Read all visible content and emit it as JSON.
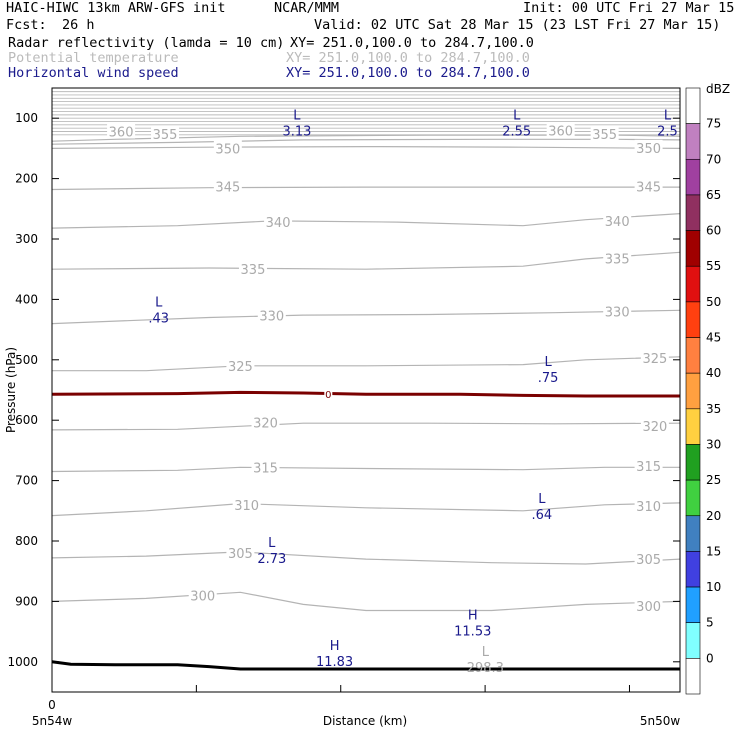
{
  "header": {
    "model": "HAIC-HIWC 13km ARW-GFS init",
    "org": "NCAR/MMM",
    "init": "Init: 00 UTC Fri 27 Mar 15",
    "fcst_label": "Fcst:",
    "fcst_value": "26 h",
    "valid": "Valid: 02 UTC Sat 28 Mar 15 (23 LST Fri 27 Mar 15)",
    "fields": [
      {
        "name": "Radar reflectivity (lamda = 10 cm)",
        "xy": "XY= 251.0,100.0 to 284.7,100.0",
        "color": "#000000"
      },
      {
        "name": "Potential temperature",
        "xy": "XY= 251.0,100.0 to 284.7,100.0",
        "color": "#bbbbbb"
      },
      {
        "name": "Horizontal wind speed",
        "xy": "XY= 251.0,100.0 to 284.7,100.0",
        "color": "#1a1a8c"
      }
    ]
  },
  "chart_data": {
    "type": "contour_cross_section",
    "ylabel": "Pressure (hPa)",
    "xlabel": "Distance (km)",
    "x_start_label": "5n54w",
    "x_end_label": "5n50w",
    "x_zero_label": "0",
    "yticks": [
      100,
      200,
      300,
      400,
      500,
      600,
      700,
      800,
      900,
      1000
    ],
    "ylim": [
      1050,
      50
    ],
    "theta_contours": [
      {
        "value": 360,
        "label": "360",
        "points": [
          [
            0,
            138
          ],
          [
            0.1,
            135
          ],
          [
            0.3,
            130
          ],
          [
            0.6,
            128
          ],
          [
            0.9,
            128
          ],
          [
            1,
            130
          ]
        ]
      },
      {
        "value": 355,
        "label": "355",
        "points": [
          [
            0,
            143
          ],
          [
            0.2,
            140
          ],
          [
            0.4,
            136
          ],
          [
            0.7,
            135
          ],
          [
            0.9,
            135
          ],
          [
            1,
            136
          ]
        ]
      },
      {
        "value": 350,
        "label": "350",
        "points": [
          [
            0,
            150
          ],
          [
            0.25,
            148
          ],
          [
            0.5,
            147
          ],
          [
            0.75,
            148
          ],
          [
            1,
            150
          ]
        ]
      },
      {
        "value": 345,
        "label": "345",
        "points": [
          [
            0,
            218
          ],
          [
            0.25,
            215
          ],
          [
            0.5,
            214
          ],
          [
            0.75,
            214
          ],
          [
            1,
            214
          ]
        ]
      },
      {
        "value": 340,
        "label": "340",
        "points": [
          [
            0,
            282
          ],
          [
            0.2,
            278
          ],
          [
            0.35,
            270
          ],
          [
            0.55,
            272
          ],
          [
            0.75,
            278
          ],
          [
            0.85,
            268
          ],
          [
            1,
            258
          ]
        ]
      },
      {
        "value": 335,
        "label": "335",
        "points": [
          [
            0,
            350
          ],
          [
            0.25,
            348
          ],
          [
            0.5,
            350
          ],
          [
            0.75,
            345
          ],
          [
            0.85,
            333
          ],
          [
            1,
            322
          ]
        ]
      },
      {
        "value": 330,
        "label": "330",
        "points": [
          [
            0,
            440
          ],
          [
            0.25,
            430
          ],
          [
            0.4,
            426
          ],
          [
            0.6,
            425
          ],
          [
            0.8,
            422
          ],
          [
            1,
            418
          ]
        ]
      },
      {
        "value": 325,
        "label": "325",
        "points": [
          [
            0,
            518
          ],
          [
            0.15,
            518
          ],
          [
            0.3,
            510
          ],
          [
            0.5,
            510
          ],
          [
            0.75,
            508
          ],
          [
            0.85,
            500
          ],
          [
            1,
            495
          ]
        ]
      },
      {
        "value": 320,
        "label": "320",
        "points": [
          [
            0,
            616
          ],
          [
            0.2,
            615
          ],
          [
            0.4,
            605
          ],
          [
            0.6,
            605
          ],
          [
            0.8,
            606
          ],
          [
            1,
            605
          ]
        ]
      },
      {
        "value": 315,
        "label": "315",
        "points": [
          [
            0,
            685
          ],
          [
            0.2,
            683
          ],
          [
            0.3,
            678
          ],
          [
            0.5,
            680
          ],
          [
            0.75,
            682
          ],
          [
            0.88,
            678
          ],
          [
            1,
            678
          ]
        ]
      },
      {
        "value": 310,
        "label": "310",
        "points": [
          [
            0,
            758
          ],
          [
            0.15,
            750
          ],
          [
            0.3,
            738
          ],
          [
            0.5,
            745
          ],
          [
            0.75,
            750
          ],
          [
            0.88,
            740
          ],
          [
            1,
            737
          ]
        ]
      },
      {
        "value": 305,
        "label": "305",
        "points": [
          [
            0,
            828
          ],
          [
            0.15,
            825
          ],
          [
            0.3,
            818
          ],
          [
            0.5,
            830
          ],
          [
            0.7,
            836
          ],
          [
            0.85,
            838
          ],
          [
            1,
            830
          ]
        ]
      },
      {
        "value": 300,
        "label": "300",
        "points": [
          [
            0,
            900
          ],
          [
            0.15,
            895
          ],
          [
            0.3,
            885
          ],
          [
            0.4,
            905
          ],
          [
            0.5,
            915
          ],
          [
            0.7,
            915
          ],
          [
            0.85,
            905
          ],
          [
            1,
            900
          ]
        ]
      }
    ],
    "theta_labels": [
      {
        "text": "360",
        "x": 0.11,
        "p": 122
      },
      {
        "text": "355",
        "x": 0.18,
        "p": 126
      },
      {
        "text": "350",
        "x": 0.28,
        "p": 150
      },
      {
        "text": "345",
        "x": 0.28,
        "p": 213
      },
      {
        "text": "340",
        "x": 0.36,
        "p": 272
      },
      {
        "text": "335",
        "x": 0.32,
        "p": 350
      },
      {
        "text": "330",
        "x": 0.35,
        "p": 427
      },
      {
        "text": "325",
        "x": 0.3,
        "p": 510
      },
      {
        "text": "320",
        "x": 0.34,
        "p": 604
      },
      {
        "text": "315",
        "x": 0.34,
        "p": 678
      },
      {
        "text": "310",
        "x": 0.31,
        "p": 740
      },
      {
        "text": "305",
        "x": 0.3,
        "p": 820
      },
      {
        "text": "300",
        "x": 0.24,
        "p": 890
      },
      {
        "text": "360",
        "x": 0.81,
        "p": 120
      },
      {
        "text": "355",
        "x": 0.88,
        "p": 126
      },
      {
        "text": "350",
        "x": 0.95,
        "p": 149
      },
      {
        "text": "345",
        "x": 0.95,
        "p": 213
      },
      {
        "text": "340",
        "x": 0.9,
        "p": 270
      },
      {
        "text": "335",
        "x": 0.9,
        "p": 332
      },
      {
        "text": "330",
        "x": 0.9,
        "p": 420
      },
      {
        "text": "325",
        "x": 0.96,
        "p": 497
      },
      {
        "text": "320",
        "x": 0.96,
        "p": 610
      },
      {
        "text": "315",
        "x": 0.95,
        "p": 676
      },
      {
        "text": "310",
        "x": 0.95,
        "p": 742
      },
      {
        "text": "305",
        "x": 0.95,
        "p": 830
      },
      {
        "text": "300",
        "x": 0.95,
        "p": 908
      }
    ],
    "wind_extrema": [
      {
        "type": "L",
        "value": "3.13",
        "x": 0.39,
        "p": 112
      },
      {
        "type": "L",
        "value": "2.55",
        "x": 0.74,
        "p": 112
      },
      {
        "type": "L",
        "value": "2.5",
        "x": 0.98,
        "p": 112
      },
      {
        "type": "L",
        "value": ".43",
        "x": 0.17,
        "p": 422
      },
      {
        "type": "L",
        "value": ".75",
        "x": 0.79,
        "p": 520
      },
      {
        "type": "L",
        "value": ".64",
        "x": 0.78,
        "p": 747
      },
      {
        "type": "L",
        "value": "2.73",
        "x": 0.35,
        "p": 820
      },
      {
        "type": "H",
        "value": "11.53",
        "x": 0.67,
        "p": 940
      },
      {
        "type": "H",
        "value": "11.83",
        "x": 0.45,
        "p": 990
      }
    ],
    "theta_extremum": {
      "type": "L",
      "value": "298.3",
      "x": 0.69,
      "p": 1000
    },
    "freezing_line": {
      "label": "0",
      "label_x": 0.44,
      "points": [
        [
          0,
          557
        ],
        [
          0.2,
          556
        ],
        [
          0.3,
          554
        ],
        [
          0.4,
          555
        ],
        [
          0.5,
          557
        ],
        [
          0.65,
          557
        ],
        [
          0.75,
          559
        ],
        [
          0.85,
          560
        ],
        [
          1,
          560
        ]
      ]
    },
    "terrain": {
      "points": [
        [
          0,
          1000
        ],
        [
          0.03,
          1004
        ],
        [
          0.1,
          1005
        ],
        [
          0.2,
          1005
        ],
        [
          0.25,
          1008
        ],
        [
          0.3,
          1012
        ],
        [
          0.5,
          1012
        ],
        [
          1,
          1012
        ]
      ]
    },
    "colorbar": {
      "title": "dBZ",
      "levels": [
        "75",
        "70",
        "65",
        "60",
        "55",
        "50",
        "45",
        "40",
        "35",
        "30",
        "25",
        "20",
        "15",
        "10",
        "5",
        "0"
      ],
      "colors": [
        "#ffffff",
        "#c080c0",
        "#a040a0",
        "#903060",
        "#a00000",
        "#e01010",
        "#ff4010",
        "#ff8040",
        "#ffa040",
        "#ffd040",
        "#20a020",
        "#40d040",
        "#4080c0",
        "#4040e0",
        "#20a0ff",
        "#80ffff",
        "#ffffff"
      ]
    }
  }
}
